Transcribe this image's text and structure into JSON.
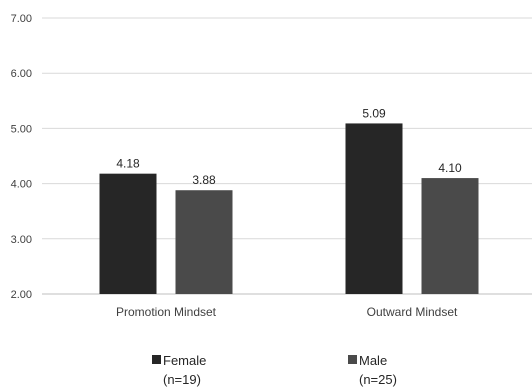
{
  "chart_data": {
    "type": "bar",
    "categories": [
      "Promotion Mindset",
      "Outward Mindset"
    ],
    "series": [
      {
        "name": "Female",
        "sublabel": "(n=19)",
        "values": [
          4.18,
          5.09
        ],
        "color": "#262626"
      },
      {
        "name": "Male",
        "sublabel": "(n=25)",
        "values": [
          3.88,
          4.1
        ],
        "color": "#4a4a4a"
      }
    ],
    "data_labels": [
      [
        "4.18",
        "5.09"
      ],
      [
        "3.88",
        "4.10"
      ]
    ],
    "ylim": [
      2.0,
      7.0
    ],
    "yticks": [
      "2.00",
      "3.00",
      "4.00",
      "5.00",
      "6.00",
      "7.00"
    ],
    "grid": true,
    "legend_position": "bottom",
    "title": "",
    "xlabel": "",
    "ylabel": ""
  }
}
